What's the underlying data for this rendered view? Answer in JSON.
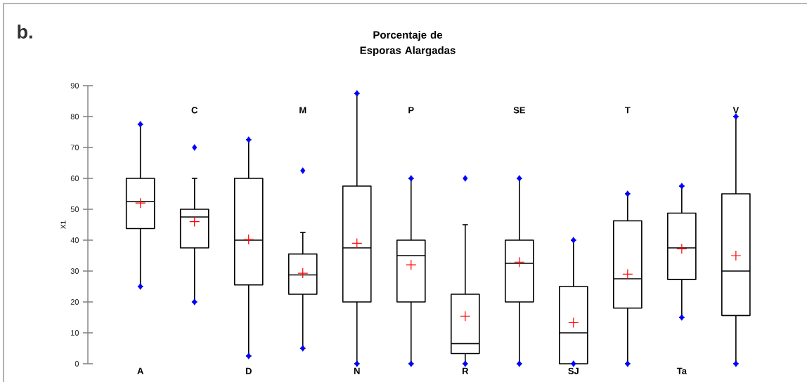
{
  "chart_data": {
    "type": "box",
    "title": "Porcentaje de Esporas Alargadas",
    "ylabel": "X1",
    "annotations": [
      "b."
    ],
    "categories": [
      "A",
      "C",
      "D",
      "M",
      "N",
      "P",
      "R",
      "SE",
      "SJ",
      "T",
      "Ta",
      "V"
    ],
    "color": "#000000",
    "grid": false,
    "ylim": [
      0,
      90
    ],
    "yticks": [
      0,
      10,
      20,
      30,
      40,
      50,
      60,
      70,
      80,
      90
    ],
    "boxes": [
      {
        "low": 25,
        "q1": 43.75,
        "median": 52.5,
        "q3": 60,
        "high": 77.5,
        "mean": 52
      },
      {
        "low": 20,
        "q1": 37.5,
        "median": 47.5,
        "q3": 50,
        "high": 60,
        "mean": 46
      },
      {
        "low": 2.5,
        "q1": 25.5,
        "median": 40,
        "q3": 60,
        "high": 72.5,
        "mean": 40.2
      },
      {
        "low": 5,
        "q1": 22.5,
        "median": 28.75,
        "q3": 35.5,
        "high": 42.5,
        "mean": 29.3
      },
      {
        "low": 0,
        "q1": 20,
        "median": 37.5,
        "q3": 57.5,
        "high": 87.5,
        "mean": 39
      },
      {
        "low": 0,
        "q1": 20,
        "median": 35,
        "q3": 40,
        "high": 60,
        "mean": 32
      },
      {
        "low": 0,
        "q1": 3.3,
        "median": 6.5,
        "q3": 22.5,
        "high": 45,
        "mean": 15.4
      },
      {
        "low": 0,
        "q1": 20,
        "median": 32.5,
        "q3": 40,
        "high": 60,
        "mean": 32.9
      },
      {
        "low": 0,
        "q1": 0,
        "median": 10,
        "q3": 25,
        "high": 40,
        "mean": 13.3
      },
      {
        "low": 0,
        "q1": 18,
        "median": 27.5,
        "q3": 46.25,
        "high": 55,
        "mean": 29
      },
      {
        "low": 15,
        "q1": 27.3,
        "median": 37.5,
        "q3": 48.75,
        "high": 57.5,
        "mean": 37.2
      },
      {
        "low": 0,
        "q1": 15.6,
        "median": 30,
        "q3": 55,
        "high": 80,
        "mean": 35
      }
    ],
    "series": [
      {
        "type": "scatter",
        "color": "#0000ff",
        "marker": "diamond",
        "x": [
          "A",
          "A",
          "C",
          "C",
          "D",
          "D",
          "M",
          "M",
          "N",
          "N",
          "P",
          "P",
          "R",
          "R",
          "SE",
          "SE",
          "SJ",
          "SJ",
          "T",
          "T",
          "Ta",
          "Ta",
          "V",
          "V"
        ],
        "values": [
          25,
          77.5,
          20,
          70,
          2.5,
          72.5,
          5,
          62.5,
          0,
          87.5,
          0,
          60,
          0,
          60,
          0,
          60,
          0,
          40,
          0,
          55,
          15,
          57.5,
          0,
          80
        ]
      }
    ]
  }
}
